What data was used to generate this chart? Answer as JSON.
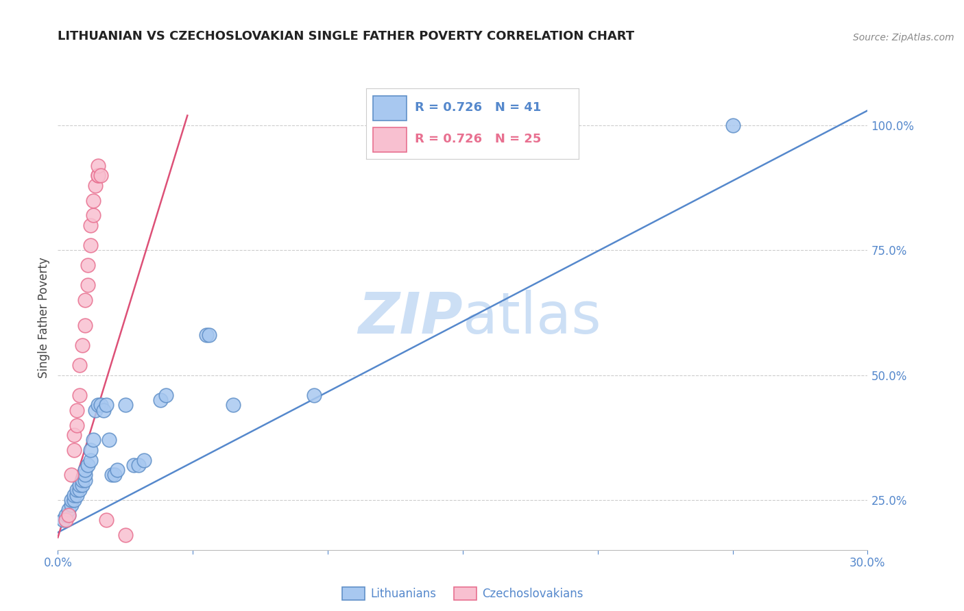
{
  "title": "LITHUANIAN VS CZECHOSLOVAKIAN SINGLE FATHER POVERTY CORRELATION CHART",
  "source": "Source: ZipAtlas.com",
  "ylabel_label": "Single Father Poverty",
  "x_min": 0.0,
  "x_max": 0.3,
  "y_min": 0.15,
  "y_max": 1.08,
  "legend_r_blue": "R = 0.726",
  "legend_n_blue": "N = 41",
  "legend_r_pink": "R = 0.726",
  "legend_n_pink": "N = 25",
  "legend_label_blue": "Lithuanians",
  "legend_label_pink": "Czechoslovakians",
  "blue_fill": "#a8c8f0",
  "pink_fill": "#f8c0d0",
  "blue_edge": "#6090c8",
  "pink_edge": "#e87090",
  "blue_line_color": "#5588cc",
  "pink_line_color": "#dd5077",
  "title_color": "#222222",
  "axis_color": "#5588cc",
  "grid_color": "#cccccc",
  "watermark_color": "#ccdff5",
  "blue_scatter": [
    [
      0.002,
      0.21
    ],
    [
      0.003,
      0.22
    ],
    [
      0.004,
      0.22
    ],
    [
      0.004,
      0.23
    ],
    [
      0.005,
      0.24
    ],
    [
      0.005,
      0.25
    ],
    [
      0.006,
      0.25
    ],
    [
      0.006,
      0.26
    ],
    [
      0.007,
      0.26
    ],
    [
      0.007,
      0.27
    ],
    [
      0.008,
      0.27
    ],
    [
      0.008,
      0.28
    ],
    [
      0.009,
      0.28
    ],
    [
      0.009,
      0.29
    ],
    [
      0.01,
      0.29
    ],
    [
      0.01,
      0.3
    ],
    [
      0.01,
      0.31
    ],
    [
      0.011,
      0.32
    ],
    [
      0.012,
      0.33
    ],
    [
      0.012,
      0.35
    ],
    [
      0.013,
      0.37
    ],
    [
      0.014,
      0.43
    ],
    [
      0.015,
      0.44
    ],
    [
      0.016,
      0.44
    ],
    [
      0.017,
      0.43
    ],
    [
      0.018,
      0.44
    ],
    [
      0.019,
      0.37
    ],
    [
      0.02,
      0.3
    ],
    [
      0.021,
      0.3
    ],
    [
      0.022,
      0.31
    ],
    [
      0.025,
      0.44
    ],
    [
      0.028,
      0.32
    ],
    [
      0.03,
      0.32
    ],
    [
      0.032,
      0.33
    ],
    [
      0.038,
      0.45
    ],
    [
      0.04,
      0.46
    ],
    [
      0.055,
      0.58
    ],
    [
      0.056,
      0.58
    ],
    [
      0.065,
      0.44
    ],
    [
      0.095,
      0.46
    ],
    [
      0.25,
      1.0
    ]
  ],
  "pink_scatter": [
    [
      0.003,
      0.21
    ],
    [
      0.004,
      0.22
    ],
    [
      0.005,
      0.3
    ],
    [
      0.006,
      0.35
    ],
    [
      0.006,
      0.38
    ],
    [
      0.007,
      0.4
    ],
    [
      0.007,
      0.43
    ],
    [
      0.008,
      0.46
    ],
    [
      0.008,
      0.52
    ],
    [
      0.009,
      0.56
    ],
    [
      0.01,
      0.6
    ],
    [
      0.01,
      0.65
    ],
    [
      0.011,
      0.68
    ],
    [
      0.011,
      0.72
    ],
    [
      0.012,
      0.76
    ],
    [
      0.012,
      0.8
    ],
    [
      0.013,
      0.82
    ],
    [
      0.013,
      0.85
    ],
    [
      0.014,
      0.88
    ],
    [
      0.015,
      0.9
    ],
    [
      0.015,
      0.9
    ],
    [
      0.015,
      0.92
    ],
    [
      0.016,
      0.9
    ],
    [
      0.018,
      0.21
    ],
    [
      0.025,
      0.18
    ]
  ],
  "blue_line_x": [
    0.0,
    0.3
  ],
  "blue_line_y": [
    0.185,
    1.03
  ],
  "pink_line_x": [
    0.0,
    0.048
  ],
  "pink_line_y": [
    0.175,
    1.02
  ]
}
